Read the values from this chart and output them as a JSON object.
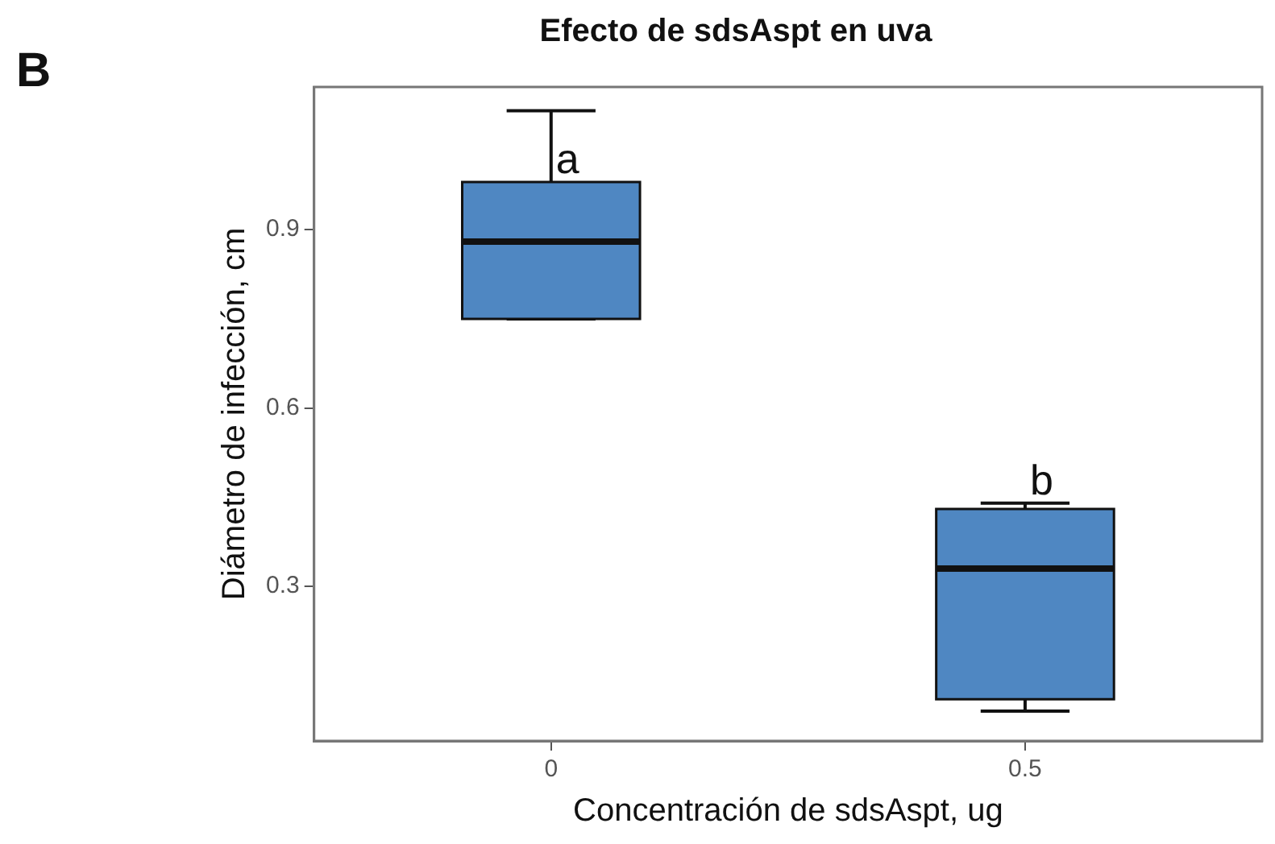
{
  "chart_data": {
    "type": "box",
    "title": "Efecto de sdsAspt en uva",
    "xlabel": "Concentración de sdsAspt, ug",
    "ylabel": "Diámetro de infección, cm",
    "categories": [
      "0",
      "0.5"
    ],
    "color": "#4f87c2",
    "boxes": [
      {
        "low": 0.75,
        "q1": 0.75,
        "median": 0.88,
        "q3": 0.98,
        "high": 1.1
      },
      {
        "low": 0.09,
        "q1": 0.11,
        "median": 0.33,
        "q3": 0.43,
        "high": 0.44
      }
    ],
    "ylim": [
      0.04,
      1.14
    ],
    "yticks": [
      0.3,
      0.6,
      0.9
    ],
    "grid": false,
    "legend": false,
    "annotations": [
      "B",
      {
        "text": "a",
        "x": "0",
        "y": 0.99
      },
      {
        "text": "b",
        "x": "0.5",
        "y": 0.45
      }
    ]
  }
}
